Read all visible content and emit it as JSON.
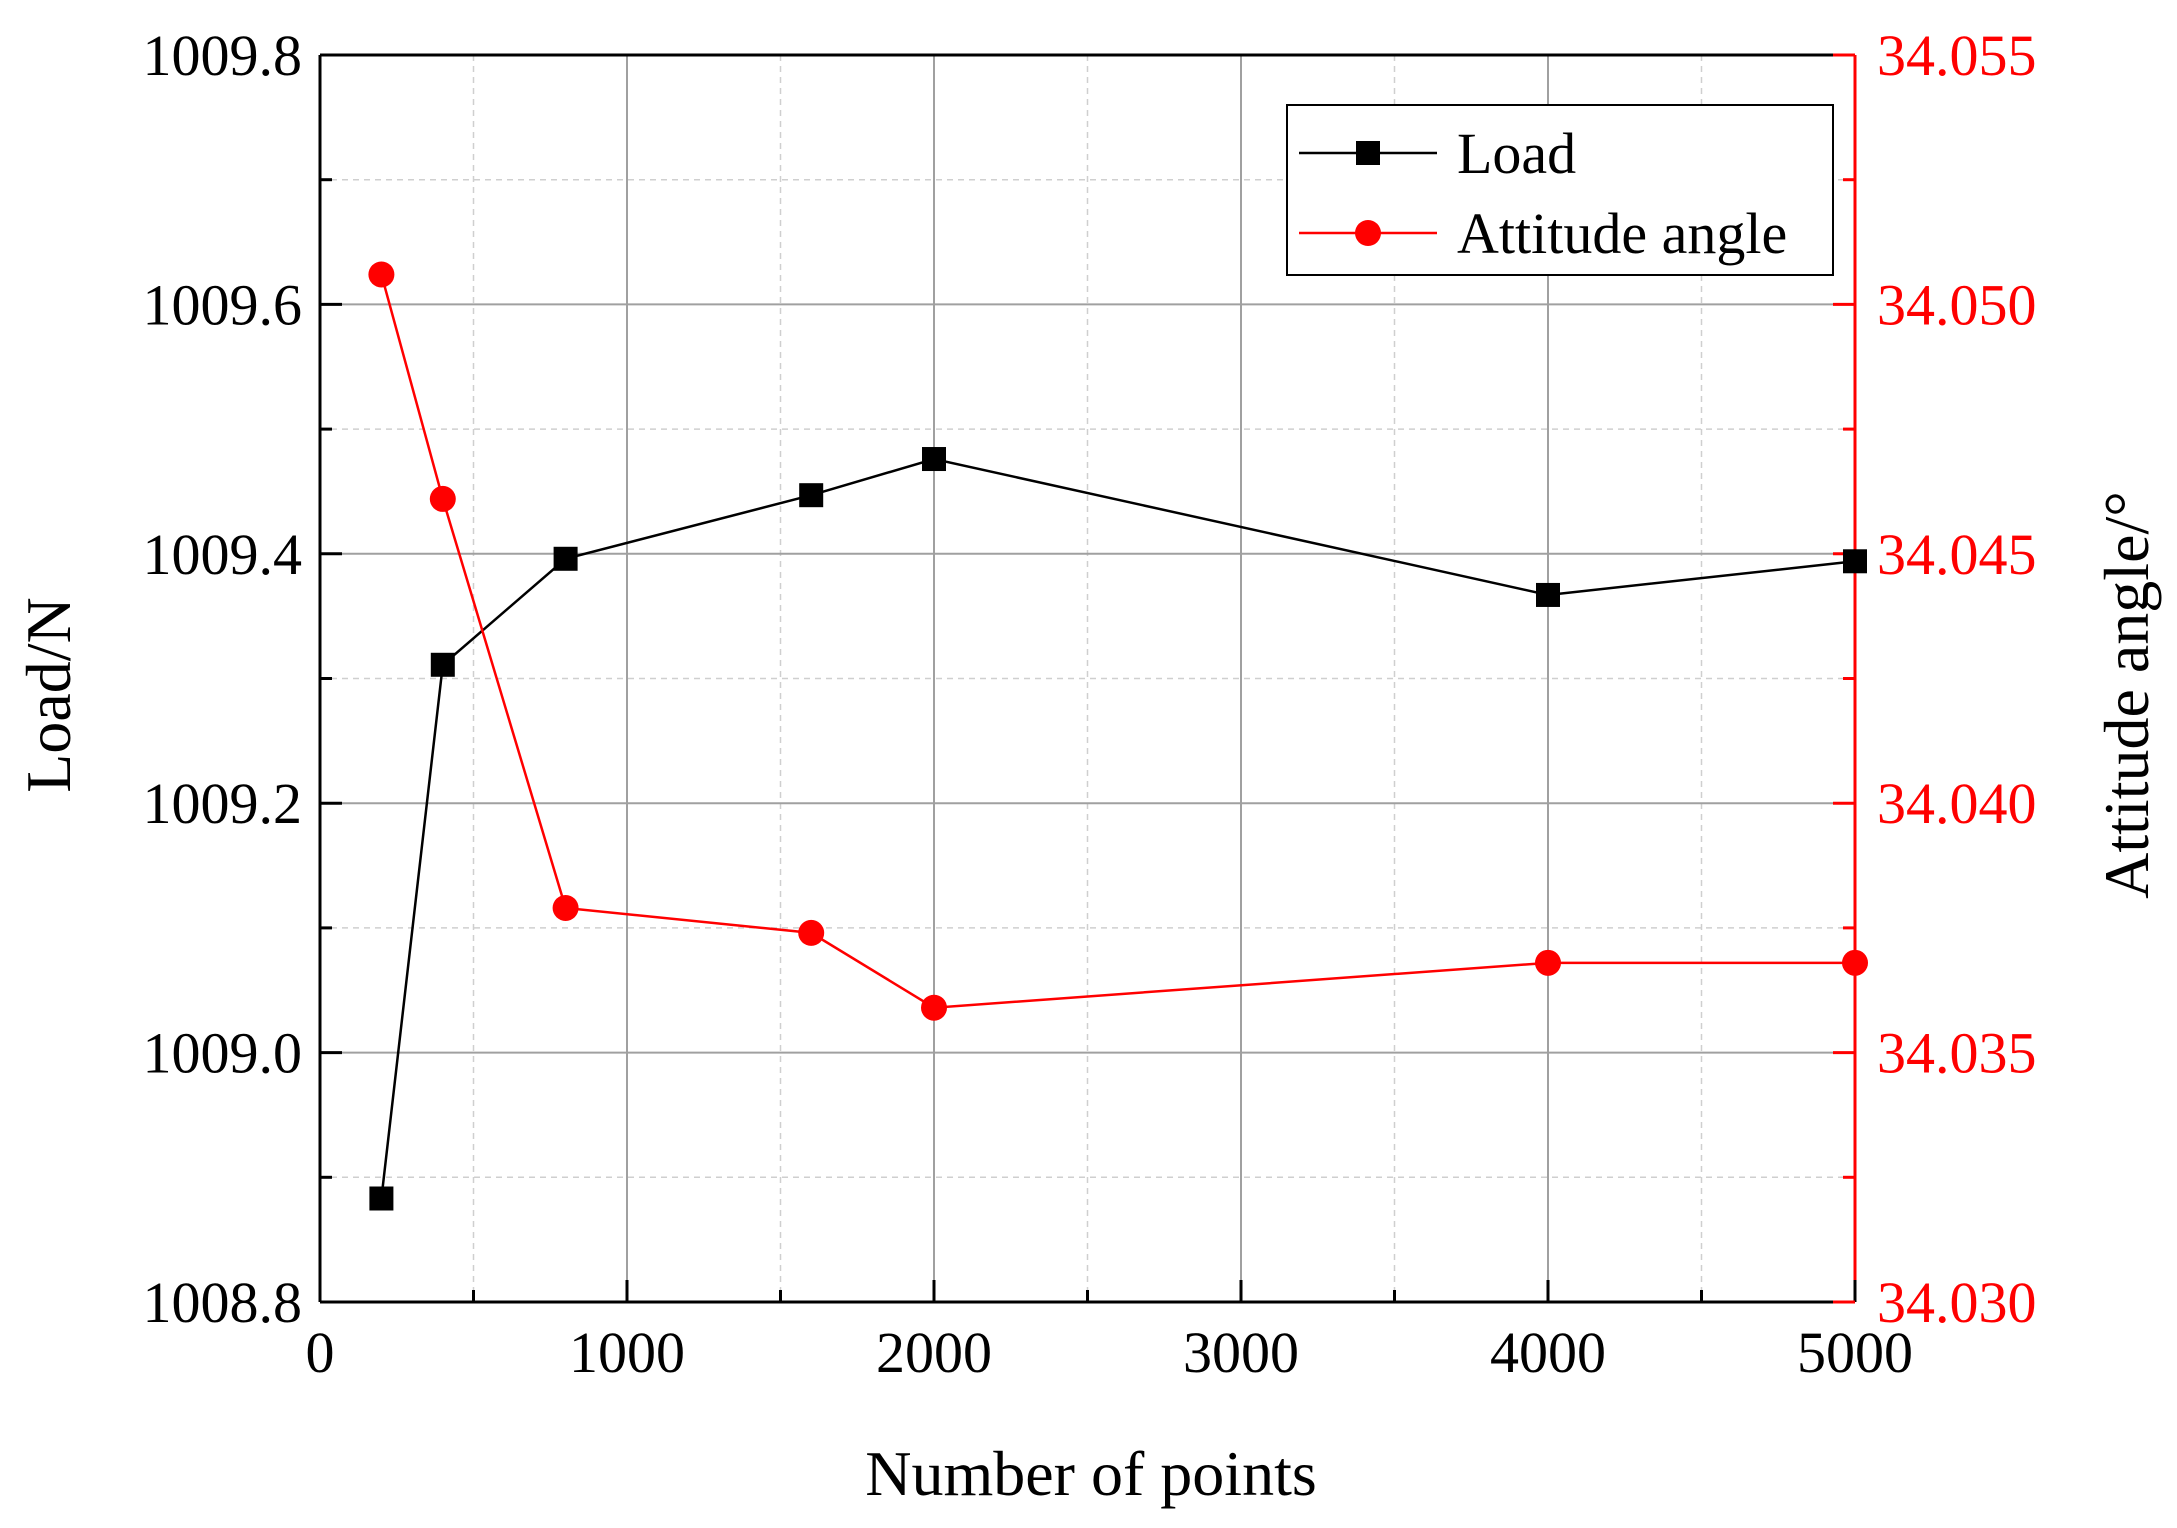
{
  "chart_data": {
    "type": "line",
    "x": [
      200,
      400,
      800,
      1600,
      2000,
      4000,
      5000
    ],
    "xlabel": "Number of points",
    "xlim": [
      0,
      5000
    ],
    "xticks": [
      0,
      1000,
      2000,
      3000,
      4000,
      5000
    ],
    "xtick_labels": [
      "0",
      "1000",
      "2000",
      "3000",
      "4000",
      "5000"
    ],
    "ylabel": "Load/N",
    "ylim": [
      1008.8,
      1009.8
    ],
    "yticks": [
      1008.8,
      1009.0,
      1009.2,
      1009.4,
      1009.6,
      1009.8
    ],
    "ytick_labels": [
      "1008.8",
      "1009.0",
      "1009.2",
      "1009.4",
      "1009.6",
      "1009.8"
    ],
    "y2label": "Attitude angle/°",
    "y2lim": [
      34.03,
      34.055
    ],
    "y2ticks": [
      34.03,
      34.035,
      34.04,
      34.045,
      34.05,
      34.055
    ],
    "y2tick_labels": [
      "34.030",
      "34.035",
      "34.040",
      "34.045",
      "34.050",
      "34.055"
    ],
    "grid": true,
    "legend_position": "top-right",
    "series": [
      {
        "name": "Load",
        "axis": "left",
        "marker": "square",
        "color": "#000000",
        "values": [
          1008.883,
          1009.311,
          1009.396,
          1009.447,
          1009.476,
          1009.367,
          1009.394
        ]
      },
      {
        "name": "Attitude angle",
        "axis": "right",
        "marker": "circle",
        "color": "#ff0000",
        "values": [
          34.0506,
          34.0461,
          34.0379,
          34.0374,
          34.0359,
          34.0368,
          34.0368
        ]
      }
    ]
  }
}
